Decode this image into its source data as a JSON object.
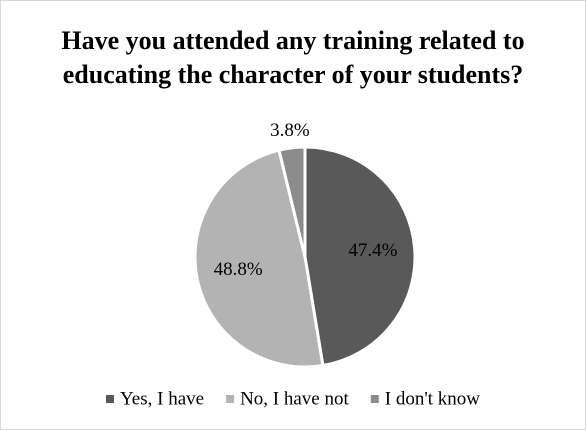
{
  "chart_data": {
    "type": "pie",
    "title": "Have you attended any training related to educating the character of your students?",
    "categories": [
      "Yes, I have",
      "No, I have not",
      "I don't know"
    ],
    "values": [
      47.4,
      48.8,
      3.8
    ],
    "value_labels": [
      "47.4%",
      "48.8%",
      "3.8%"
    ],
    "colors": [
      "#595959",
      "#b3b3b3",
      "#8c8c8c"
    ],
    "legend": "bottom"
  }
}
